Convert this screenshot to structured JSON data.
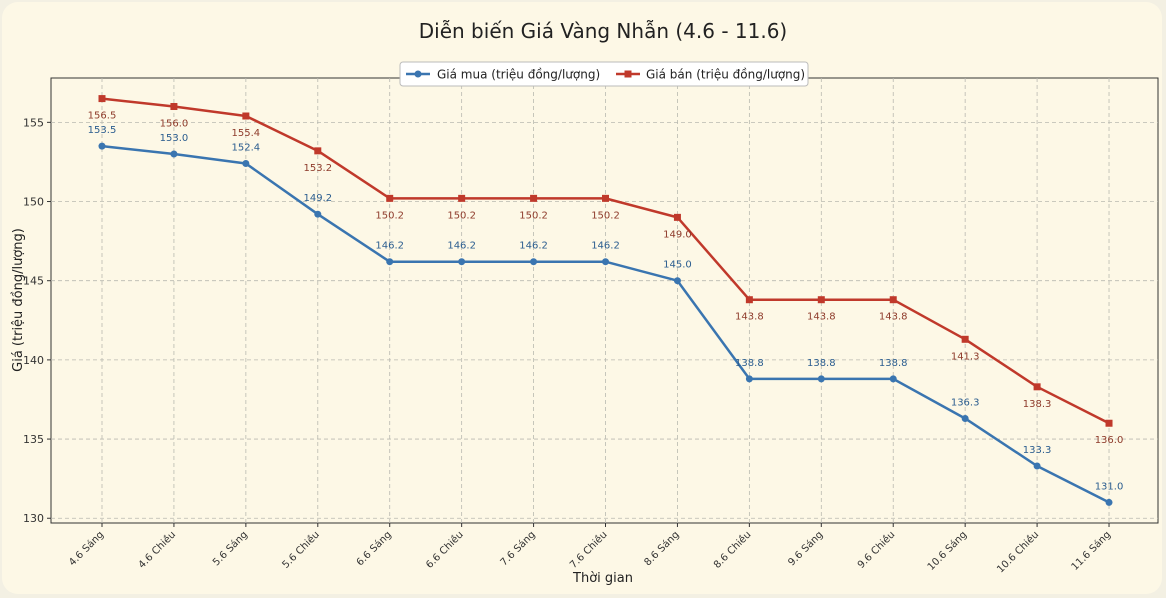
{
  "chart_data": {
    "type": "line",
    "title": "Diễn biến Giá Vàng Nhẫn (4.6 - 11.6)",
    "xlabel": "Thời gian",
    "ylabel": "Giá (triệu đồng/lượng)",
    "ylim": [
      129.7,
      157.8
    ],
    "yticks": [
      "130",
      "135",
      "140",
      "145",
      "150",
      "155"
    ],
    "grid": true,
    "legend_position": "top-center",
    "categories": [
      "4.6 Sáng",
      "4.6 Chiều",
      "5.6 Sáng",
      "5.6 Chiều",
      "6.6 Sáng",
      "6.6 Chiều",
      "7.6 Sáng",
      "7.6 Chiều",
      "8.6 Sáng",
      "8.6 Chiều",
      "9.6 Sáng",
      "9.6 Chiều",
      "10.6 Sáng",
      "10.6 Chiều",
      "11.6 Sáng"
    ],
    "series": [
      {
        "name": "Giá mua (triệu đồng/lượng)",
        "color": "#3a75b0",
        "marker": "circle",
        "values": [
          153.5,
          153.0,
          152.4,
          149.2,
          146.2,
          146.2,
          146.2,
          146.2,
          145.0,
          138.8,
          138.8,
          138.8,
          136.3,
          133.3,
          131.0
        ],
        "labels": [
          "153.5",
          "153.0",
          "152.4",
          "149.2",
          "146.2",
          "146.2",
          "146.2",
          "146.2",
          "145.0",
          "138.8",
          "138.8",
          "138.8",
          "136.3",
          "133.3",
          "131.0"
        ]
      },
      {
        "name": "Giá bán (triệu đồng/lượng)",
        "color": "#c0392b",
        "marker": "square",
        "values": [
          156.5,
          156.0,
          155.4,
          153.2,
          150.2,
          150.2,
          150.2,
          150.2,
          149.0,
          143.8,
          143.8,
          143.8,
          141.3,
          138.3,
          136.0
        ],
        "labels": [
          "156.5",
          "156.0",
          "155.4",
          "153.2",
          "150.2",
          "150.2",
          "150.2",
          "150.2",
          "149.0",
          "143.8",
          "143.8",
          "143.8",
          "141.3",
          "138.3",
          "136.0"
        ]
      }
    ]
  }
}
